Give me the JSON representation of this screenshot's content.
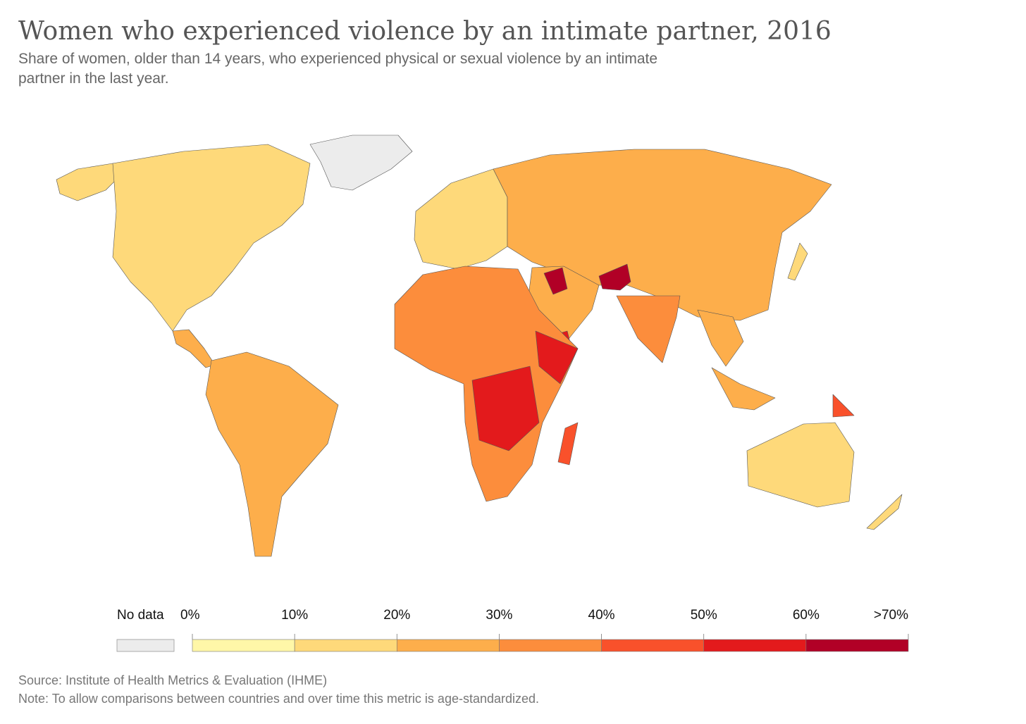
{
  "title": "Women who experienced violence by an intimate partner, 2016",
  "subtitle": "Share of women, older than 14 years, who experienced physical or sexual violence by an intimate partner in the last year.",
  "legend": {
    "no_data": {
      "label": "No data",
      "color": "#ececec"
    },
    "labels": [
      "0%",
      "10%",
      "20%",
      "30%",
      "40%",
      "50%",
      "60%",
      ">70%"
    ],
    "colors": [
      "#fff7a8",
      "#fed97a",
      "#fdae4b",
      "#fc8d3c",
      "#f9512b",
      "#e31a1c",
      "#b10026"
    ]
  },
  "source": "Source: Institute of Health Metrics & Evaluation (IHME)",
  "note": "Note: To allow comparisons between countries and over time this metric is age-standardized."
}
